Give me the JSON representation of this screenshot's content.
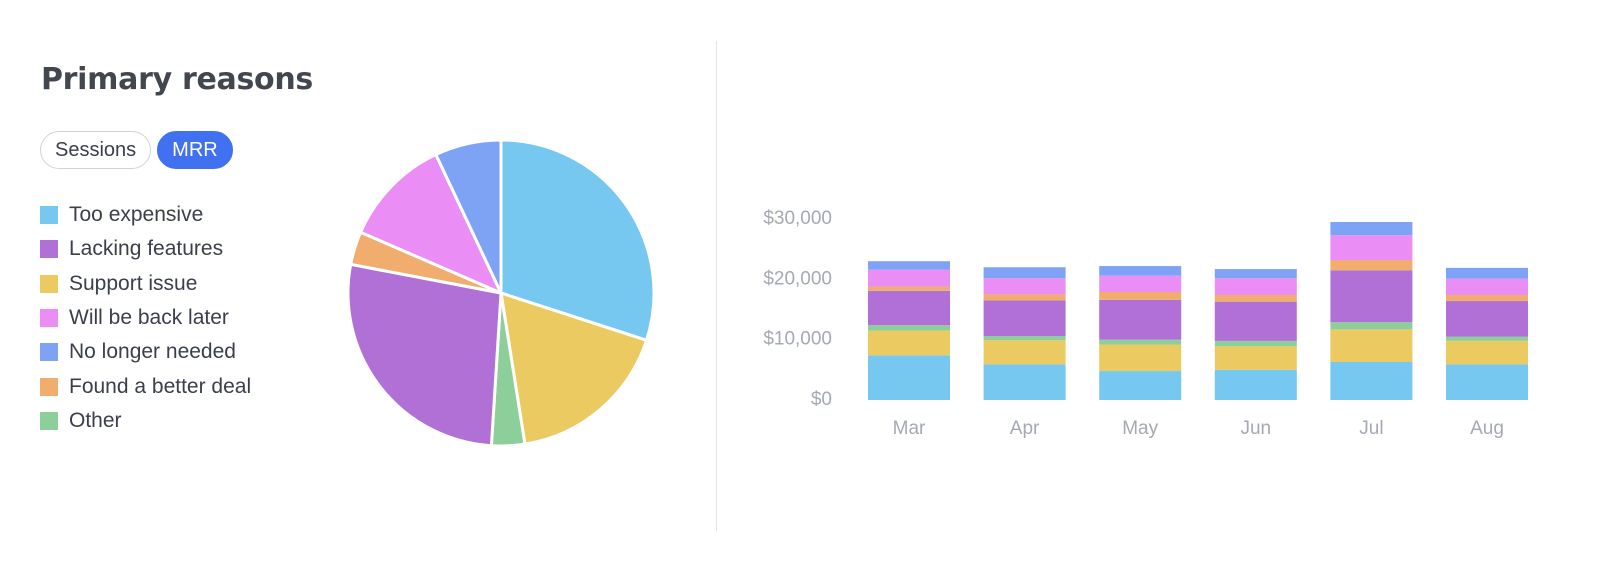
{
  "header": {
    "title": "Primary reasons"
  },
  "toggle": {
    "options": [
      {
        "label": "Sessions",
        "active": false
      },
      {
        "label": "MRR",
        "active": true
      }
    ]
  },
  "colors": {
    "active_toggle": "#4171f0"
  },
  "chart_data": [
    {
      "type": "pie",
      "legend_placement": "left",
      "slices": [
        {
          "label": "Too expensive",
          "value": 30,
          "color": "#76c8f0"
        },
        {
          "label": "Support issue",
          "value": 17.5,
          "color": "#ebca62"
        },
        {
          "label": "Other",
          "value": 3.5,
          "color": "#8ccf9b"
        },
        {
          "label": "Lacking features",
          "value": 27,
          "color": "#b070d5"
        },
        {
          "label": "Found a better deal",
          "value": 3.5,
          "color": "#f0ad6e"
        },
        {
          "label": "Will be back later",
          "value": 11.5,
          "color": "#ea8ef5"
        },
        {
          "label": "No longer needed",
          "value": 7,
          "color": "#7ea3f5"
        }
      ]
    },
    {
      "type": "bar",
      "stacked": true,
      "categories": [
        "Mar",
        "Apr",
        "May",
        "Jun",
        "Jul",
        "Aug"
      ],
      "ylim": [
        0,
        30000
      ],
      "yticks": [
        {
          "value": 0,
          "label": "$0"
        },
        {
          "value": 10000,
          "label": "$10,000"
        },
        {
          "value": 20000,
          "label": "$20,000"
        },
        {
          "value": 30000,
          "label": "$30,000"
        }
      ],
      "grid": false,
      "series": [
        {
          "name": "Too expensive",
          "color": "#76c8f0",
          "values": [
            7400,
            5900,
            4800,
            5000,
            6300,
            5900
          ]
        },
        {
          "name": "Support issue",
          "color": "#ebca62",
          "values": [
            4100,
            4000,
            4400,
            3900,
            5400,
            3900
          ]
        },
        {
          "name": "Other",
          "color": "#8ccf9b",
          "values": [
            900,
            700,
            800,
            900,
            1200,
            700
          ]
        },
        {
          "name": "Lacking features",
          "color": "#b070d5",
          "values": [
            5700,
            5900,
            6600,
            6500,
            8600,
            5900
          ]
        },
        {
          "name": "Found a better deal",
          "color": "#f0ad6e",
          "values": [
            700,
            1000,
            1300,
            1100,
            1700,
            1000
          ]
        },
        {
          "name": "Will be back later",
          "color": "#ea8ef5",
          "values": [
            2800,
            2700,
            2700,
            2800,
            4100,
            2700
          ]
        },
        {
          "name": "No longer needed",
          "color": "#7ea3f5",
          "values": [
            1400,
            1800,
            1600,
            1500,
            2200,
            1800
          ]
        }
      ]
    }
  ]
}
